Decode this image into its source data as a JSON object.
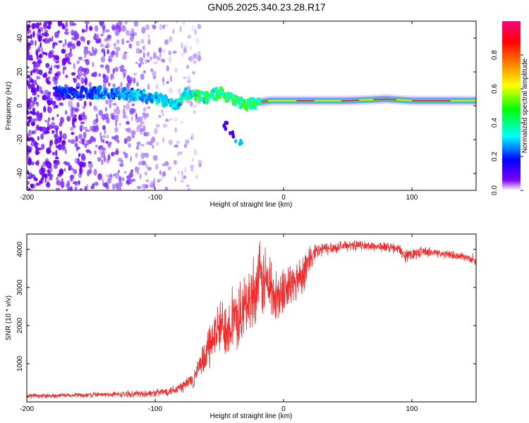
{
  "figure": {
    "title": "GN05.2025.340.23.28.R17"
  },
  "chart_data": [
    {
      "type": "heatmap",
      "panel": "top",
      "xlabel": "Height of straight line (km)",
      "ylabel": "Frequency (Hz)",
      "xlim": [
        -200,
        150
      ],
      "ylim": [
        -50,
        50
      ],
      "xticks": [
        -200,
        -100,
        0,
        100
      ],
      "yticks": [
        -40,
        -20,
        0,
        20,
        40
      ],
      "colorbar": {
        "label": "Normalized spectral amplitude",
        "range": [
          0,
          1
        ],
        "ticks": [
          0.0,
          0.2,
          0.4,
          0.6,
          0.8
        ],
        "tick_labels": [
          "0.0",
          "0.2",
          "0.4",
          "0.6",
          "0.8"
        ],
        "colormap": [
          "#ffffff",
          "#7e00ff",
          "#0000ff",
          "#00ffff",
          "#00ff00",
          "#ffff00",
          "#ff8000",
          "#ff0000",
          "#ff0080"
        ]
      },
      "ridge": {
        "description": "dominant spectral line",
        "points": [
          [
            -175,
            8
          ],
          [
            -150,
            8
          ],
          [
            -125,
            7
          ],
          [
            -100,
            5
          ],
          [
            -85,
            0
          ],
          [
            -75,
            8
          ],
          [
            -60,
            5
          ],
          [
            -50,
            8
          ],
          [
            -40,
            4
          ],
          [
            -30,
            0
          ],
          [
            -20,
            2
          ],
          [
            -10,
            3
          ],
          [
            0,
            3
          ],
          [
            50,
            3
          ],
          [
            80,
            4
          ],
          [
            100,
            3
          ],
          [
            150,
            3
          ]
        ],
        "branch": [
          [
            -45,
            -12
          ],
          [
            -40,
            -17
          ],
          [
            -35,
            -22
          ]
        ]
      }
    },
    {
      "type": "line",
      "panel": "bottom",
      "xlabel": "Height of straight line (km)",
      "ylabel": "SNR (10 * v/v)",
      "xlim": [
        -200,
        150
      ],
      "ylim": [
        0,
        4400
      ],
      "xticks": [
        -200,
        -100,
        0,
        100
      ],
      "yticks": [
        1000,
        2000,
        3000,
        4000
      ],
      "color": "#ee2a2a",
      "series": [
        {
          "name": "SNR",
          "x": [
            -200,
            -180,
            -160,
            -140,
            -120,
            -100,
            -90,
            -80,
            -70,
            -62,
            -55,
            -50,
            -45,
            -40,
            -35,
            -30,
            -25,
            -20,
            -15,
            -10,
            -5,
            0,
            5,
            10,
            15,
            20,
            25,
            30,
            40,
            50,
            60,
            70,
            80,
            90,
            95,
            100,
            110,
            120,
            130,
            140,
            150
          ],
          "values": [
            150,
            160,
            170,
            190,
            200,
            230,
            280,
            380,
            600,
            1100,
            1700,
            1900,
            2000,
            2100,
            2200,
            2400,
            2800,
            3100,
            3200,
            3000,
            2700,
            2900,
            3000,
            3200,
            3400,
            3700,
            3900,
            4000,
            4050,
            4100,
            4100,
            4080,
            4060,
            4000,
            3800,
            3900,
            3950,
            3900,
            3850,
            3800,
            3700
          ],
          "noise": [
            60,
            60,
            70,
            70,
            80,
            100,
            120,
            180,
            250,
            450,
            650,
            750,
            800,
            850,
            850,
            900,
            950,
            1000,
            1000,
            950,
            800,
            700,
            650,
            600,
            550,
            450,
            300,
            200,
            150,
            130,
            130,
            130,
            140,
            140,
            160,
            150,
            130,
            120,
            110,
            110,
            110
          ]
        }
      ]
    }
  ]
}
